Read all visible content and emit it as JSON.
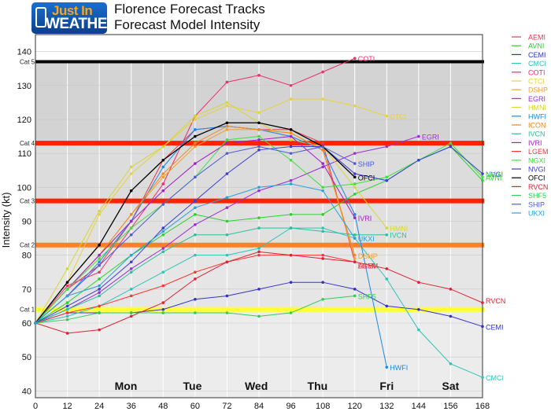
{
  "header": {
    "logo_line1": "Just In",
    "logo_line2": "WEATHER",
    "title_line1": "Florence Forecast Tracks",
    "title_line2": "Forecast Model Intensity"
  },
  "chart_data": {
    "type": "line",
    "ylabel": "Intensity (kt)",
    "xlim": [
      0,
      168
    ],
    "ylim": [
      38,
      145
    ],
    "x_ticks": [
      0,
      12,
      24,
      36,
      48,
      60,
      72,
      84,
      96,
      108,
      120,
      132,
      144,
      156,
      168
    ],
    "y_ticks": [
      40,
      50,
      60,
      70,
      80,
      90,
      100,
      110,
      120,
      130,
      140
    ],
    "day_labels": [
      {
        "x": 18,
        "label": "Mon"
      },
      {
        "x": 30,
        "label": "Tue"
      },
      {
        "x": 42,
        "label": "Wed"
      },
      {
        "x": 54,
        "label": "Thu"
      },
      {
        "x": 66,
        "label": "Fri"
      },
      {
        "x": 78,
        "label": "Sat"
      }
    ],
    "day_positions": [
      {
        "x": 18,
        "label": "Mon"
      },
      {
        "x": 30,
        "label": "Tue"
      },
      {
        "x": 42,
        "label": "Wed"
      },
      {
        "x": 54,
        "label": "Thu"
      },
      {
        "x": 66,
        "label": "Fri"
      },
      {
        "x": 78,
        "label": "Sat"
      }
    ],
    "day_label_x": [
      16,
      28,
      42,
      54,
      67,
      79
    ],
    "category_bands": [
      {
        "label": "Cat 5",
        "value": 137,
        "color": "#000000"
      },
      {
        "label": "Cat 4",
        "value": 113,
        "color": "#ff2200"
      },
      {
        "label": "Cat 3",
        "value": 96,
        "color": "#ff2200"
      },
      {
        "label": "Cat 2",
        "value": 83,
        "color": "#ff7f27"
      },
      {
        "label": "Cat 1",
        "value": 64,
        "color": "#ffff33"
      }
    ],
    "background_bands": [
      {
        "from": 137,
        "to": 145,
        "color": "#ffffff"
      },
      {
        "from": 113,
        "to": 137,
        "color": "#d3d3d3"
      },
      {
        "from": 96,
        "to": 113,
        "color": "#dcdcdc"
      },
      {
        "from": 83,
        "to": 96,
        "color": "#e0e0e0"
      },
      {
        "from": 64,
        "to": 83,
        "color": "#e6e6e6"
      },
      {
        "from": 38,
        "to": 64,
        "color": "#ececec"
      }
    ],
    "series": [
      {
        "name": "AEMI",
        "color": "#e8384f",
        "x": [
          0,
          12,
          24,
          36,
          48,
          60,
          72,
          84,
          96,
          108,
          120
        ],
        "y": [
          60,
          70,
          77,
          90,
          108,
          117,
          118,
          117,
          117,
          113,
          78
        ]
      },
      {
        "name": "AVNI",
        "color": "#2bd12b",
        "x": [
          0,
          12,
          24,
          36,
          48,
          60,
          72,
          84,
          96,
          108,
          120,
          132,
          144,
          156,
          168
        ],
        "y": [
          60,
          66,
          73,
          80,
          86,
          92,
          90,
          91,
          92,
          92,
          98,
          102,
          108,
          112,
          102
        ]
      },
      {
        "name": "CEMI",
        "color": "#3333cc",
        "x": [
          0,
          12,
          24,
          36,
          48,
          60,
          72,
          84,
          96,
          108,
          120,
          132,
          144,
          156,
          168
        ],
        "y": [
          60,
          63,
          63,
          63,
          64,
          67,
          68,
          70,
          72,
          72,
          70,
          65,
          64,
          62,
          59
        ]
      },
      {
        "name": "CMCI",
        "color": "#2fc4b8",
        "x": [
          0,
          12,
          24,
          36,
          48,
          60,
          72,
          84,
          96,
          108,
          120,
          132,
          144,
          156,
          168
        ],
        "y": [
          60,
          62,
          65,
          70,
          75,
          80,
          80,
          82,
          88,
          88,
          85,
          73,
          58,
          48,
          44
        ]
      },
      {
        "name": "COTI",
        "color": "#ef2e6f",
        "x": [
          0,
          12,
          24,
          36,
          48,
          60,
          72,
          84,
          96,
          108,
          120
        ],
        "y": [
          60,
          71,
          75,
          88,
          101,
          121,
          131,
          133,
          130,
          134,
          138
        ]
      },
      {
        "name": "CTCI",
        "color": "#e8d23a",
        "x": [
          0,
          12,
          24,
          36,
          48,
          60,
          72,
          84,
          96,
          108,
          120,
          132
        ],
        "y": [
          60,
          72,
          92,
          104,
          112,
          120,
          124,
          122,
          126,
          126,
          124,
          121
        ]
      },
      {
        "name": "DSHP",
        "color": "#f0a030",
        "x": [
          0,
          12,
          24,
          36,
          48,
          60,
          72,
          84,
          96,
          108,
          120
        ],
        "y": [
          60,
          70,
          80,
          92,
          103,
          112,
          117,
          117,
          116,
          111,
          79
        ]
      },
      {
        "name": "EGRI",
        "color": "#9b2fd6",
        "x": [
          0,
          12,
          24,
          36,
          48,
          60,
          72,
          84,
          96,
          108,
          120,
          132,
          144
        ],
        "y": [
          60,
          64,
          69,
          76,
          82,
          89,
          94,
          99,
          102,
          106,
          110,
          112,
          115
        ]
      },
      {
        "name": "HMNI",
        "color": "#d6d63a",
        "x": [
          0,
          12,
          24,
          36,
          48,
          60,
          72,
          84,
          96,
          108,
          120,
          132
        ],
        "y": [
          60,
          76,
          93,
          106,
          112,
          121,
          125,
          119,
          114,
          112,
          100,
          88
        ]
      },
      {
        "name": "HWFI",
        "color": "#1e88e5",
        "x": [
          0,
          12,
          24,
          36,
          48,
          60,
          72,
          84,
          96,
          108,
          120,
          132
        ],
        "y": [
          60,
          68,
          78,
          90,
          106,
          117,
          118,
          117,
          115,
          111,
          92,
          47
        ]
      },
      {
        "name": "ICON",
        "color": "#f08a22",
        "x": [
          0,
          12,
          24,
          36,
          48,
          60,
          72,
          84,
          96,
          108,
          120
        ],
        "y": [
          60,
          70,
          80,
          92,
          104,
          113,
          118,
          117,
          116,
          111,
          80
        ]
      },
      {
        "name": "IVCN",
        "color": "#2bbfa0",
        "x": [
          0,
          12,
          24,
          36,
          48,
          60,
          72,
          84,
          96,
          108,
          120,
          132
        ],
        "y": [
          60,
          64,
          68,
          75,
          81,
          86,
          86,
          88,
          88,
          87,
          86,
          86
        ]
      },
      {
        "name": "IVRI",
        "color": "#a020c8",
        "x": [
          0,
          12,
          24,
          36,
          48,
          60,
          72,
          84,
          96,
          108,
          120
        ],
        "y": [
          60,
          70,
          80,
          90,
          99,
          107,
          113,
          114,
          115,
          107,
          91
        ]
      },
      {
        "name": "LGEM",
        "color": "#ff3333",
        "x": [
          0,
          12,
          24,
          36,
          48,
          60,
          72,
          84,
          96,
          108,
          120
        ],
        "y": [
          60,
          63,
          65,
          68,
          71,
          75,
          78,
          80,
          80,
          80,
          78
        ]
      },
      {
        "name": "NGXI",
        "color": "#44dd44",
        "x": [
          0,
          12,
          24,
          36,
          48,
          60,
          72,
          84,
          96,
          108,
          120,
          132,
          144,
          156,
          168
        ],
        "y": [
          60,
          70,
          79,
          88,
          95,
          103,
          114,
          115,
          108,
          100,
          101,
          103,
          108,
          113,
          103
        ]
      },
      {
        "name": "NVGI",
        "color": "#3d3dd6",
        "x": [
          0,
          12,
          24,
          36,
          48,
          60,
          72,
          84,
          96,
          108,
          120,
          132,
          144,
          156,
          168
        ],
        "y": [
          60,
          65,
          70,
          78,
          88,
          96,
          104,
          111,
          112,
          112,
          104,
          102,
          108,
          112,
          104
        ]
      },
      {
        "name": "OFCI",
        "color": "#000000",
        "x": [
          0,
          12,
          24,
          36,
          48,
          60,
          72,
          84,
          96,
          108,
          120
        ],
        "y": [
          60,
          72,
          83,
          99,
          108,
          115,
          119,
          119,
          117,
          112,
          103
        ]
      },
      {
        "name": "RVCN",
        "color": "#dd2233",
        "x": [
          0,
          12,
          24,
          36,
          48,
          60,
          72,
          84,
          96,
          108,
          120,
          132,
          144,
          156,
          168
        ],
        "y": [
          60,
          57,
          58,
          62,
          66,
          73,
          78,
          81,
          80,
          79,
          78,
          76,
          72,
          70,
          66
        ]
      },
      {
        "name": "SHF5",
        "color": "#33cc55",
        "x": [
          0,
          12,
          24,
          36,
          48,
          60,
          72,
          84,
          96,
          108,
          120
        ],
        "y": [
          60,
          61,
          63,
          63,
          63,
          63,
          63,
          62,
          63,
          67,
          68
        ]
      },
      {
        "name": "SHIP",
        "color": "#4f5bd5",
        "x": [
          0,
          12,
          24,
          36,
          48,
          60,
          72,
          84,
          96,
          108,
          120
        ],
        "y": [
          60,
          68,
          77,
          86,
          95,
          103,
          110,
          112,
          110,
          112,
          107
        ]
      },
      {
        "name": "UKXI",
        "color": "#29a3d9",
        "x": [
          0,
          12,
          24,
          36,
          48,
          60,
          72,
          84,
          96,
          108,
          120
        ],
        "y": [
          60,
          68,
          71,
          80,
          87,
          94,
          97,
          100,
          101,
          99,
          85
        ]
      }
    ],
    "end_labels": [
      {
        "series": "COTI",
        "label": "COTI"
      },
      {
        "series": "CTCI",
        "label": "CTCI"
      },
      {
        "series": "EGRI",
        "label": "EGRI"
      },
      {
        "series": "SHIP",
        "label": "SHIP"
      },
      {
        "series": "OFCI",
        "label": "OFCI"
      },
      {
        "series": "IVRI",
        "label": "IVRI"
      },
      {
        "series": "HMNI",
        "label": "HMNI"
      },
      {
        "series": "IVCN",
        "label": "IVCN"
      },
      {
        "series": "UKXI",
        "label": "UKXI"
      },
      {
        "series": "DSHP",
        "label": "DSHP"
      },
      {
        "series": "LGEM",
        "label": "LGEM"
      },
      {
        "series": "SHF5",
        "label": "SHF5"
      },
      {
        "series": "HWFI",
        "label": "HWFI"
      },
      {
        "series": "NVGI",
        "label": "NVGI"
      },
      {
        "series": "NGXI",
        "label": "NGXI"
      },
      {
        "series": "AVNI",
        "label": "AVNI"
      },
      {
        "series": "RVCN",
        "label": "RVCN"
      },
      {
        "series": "AEMI",
        "label": "AEMI"
      },
      {
        "series": "CEMI",
        "label": "CEMI"
      },
      {
        "series": "CMCI",
        "label": "CMCI"
      }
    ]
  }
}
